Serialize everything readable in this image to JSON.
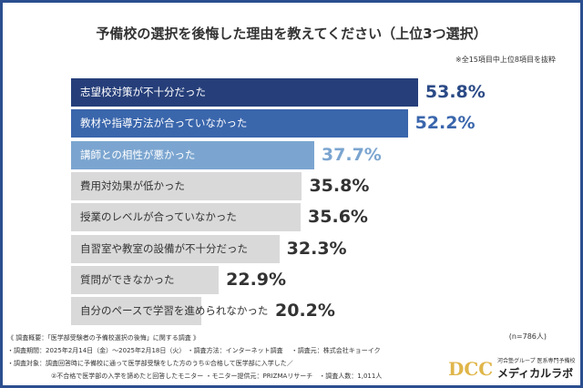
{
  "chart_data": {
    "type": "bar",
    "orientation": "horizontal",
    "title": "予備校の選択を後悔した理由を教えてください（上位3つ選択）",
    "note": "※全15項目中上位8項目を抜粋",
    "categories": [
      "志望校対策が不十分だった",
      "教材や指導方法が合っていなかった",
      "講師との相性が悪かった",
      "費用対効果が低かった",
      "授業のレベルが合っていなかった",
      "自習室や教室の設備が不十分だった",
      "質問ができなかった",
      "自分のペースで学習を進められなかった"
    ],
    "values": [
      53.8,
      52.2,
      37.7,
      35.8,
      35.6,
      32.3,
      22.9,
      20.2
    ],
    "value_labels": [
      "53.8%",
      "52.2%",
      "37.7%",
      "35.8%",
      "35.6%",
      "32.3%",
      "22.9%",
      "20.2%"
    ],
    "unit": "%",
    "xlim": [
      0,
      60
    ],
    "grid": false,
    "bar_colors": [
      "#263f7a",
      "#3a66ac",
      "#7ba5d0",
      "#d9d9d9",
      "#d9d9d9",
      "#d9d9d9",
      "#d9d9d9",
      "#d9d9d9"
    ],
    "label_colors": [
      "#ffffff",
      "#ffffff",
      "#ffffff",
      "#333333",
      "#333333",
      "#333333",
      "#333333",
      "#333333"
    ],
    "value_colors": [
      "#2b4a86",
      "#3a66ac",
      "#7ba5d0",
      "#333333",
      "#333333",
      "#333333",
      "#333333",
      "#333333"
    ],
    "sample": "(n=786人)"
  },
  "footer": {
    "line1": "《 調査概要：「医学部受験者の予備校選択の後悔」に関する調査 》",
    "line2": "・調査期間：2025年2月14日（金）～2025年2月18日（火） ・調査方法：インターネット調査　 ・調査元：株式会社キョーイク",
    "line3": "・調査対象：調査回答時に予備校に通って医学部受験をした方のうち①合格して医学部に入学した／",
    "line4": "②不合格で医学部の入学を諦めたと回答したモニター ・モニター提供元：PRIZMAリサーチ　・調査人数：1,011人"
  },
  "logo": {
    "text": "河合塾グループ 医系専門予備校 メディカルラボ",
    "watermark": "ReseMom"
  },
  "colors": {
    "frame": "#2b4f8f"
  }
}
